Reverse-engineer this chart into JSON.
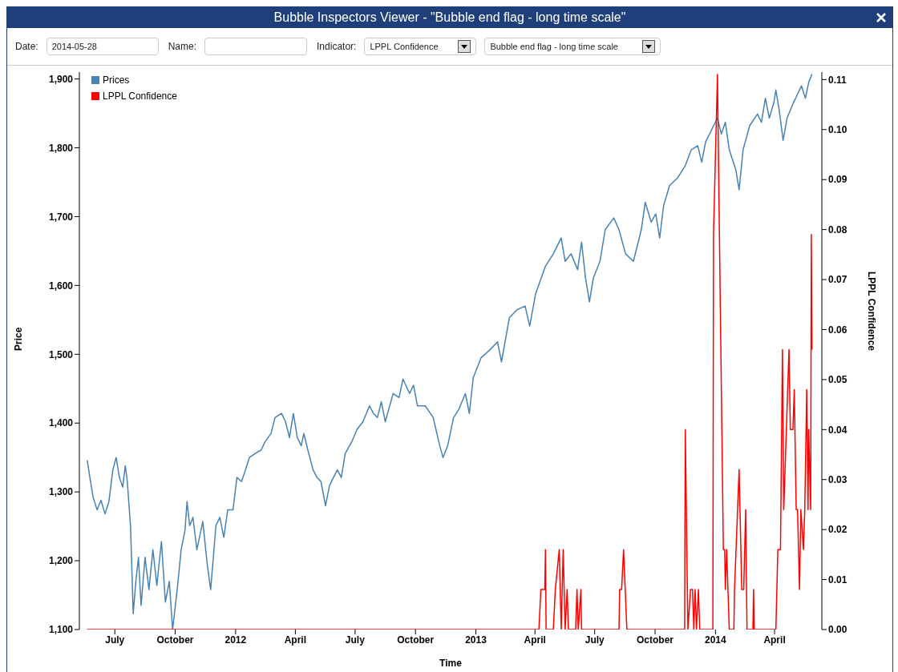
{
  "chart_data": {
    "type": "line",
    "title": "Bubble Inspectors Viewer - \"Bubble end flag - long time scale\"",
    "xlabel": "Time",
    "ylabel": "Price",
    "y2label": "LPPL Confidence",
    "annotations": [
      "Date:",
      "2014-05-28",
      "Name:",
      "Indicator:",
      "LPPL Confidence",
      "Bubble end flag - long time scale"
    ],
    "legend": "top left",
    "grid": false,
    "marker": "none",
    "line_style": "solid",
    "xlim": [
      "2011-05-08",
      "2014-06-12"
    ],
    "xticks": [
      {
        "value": "2011-07-01",
        "label": "July"
      },
      {
        "value": "2011-10-01",
        "label": "October"
      },
      {
        "value": "2012-01-01",
        "label": "2012"
      },
      {
        "value": "2012-04-01",
        "label": "April"
      },
      {
        "value": "2012-07-01",
        "label": "July"
      },
      {
        "value": "2012-10-01",
        "label": "October"
      },
      {
        "value": "2013-01-01",
        "label": "2013"
      },
      {
        "value": "2013-04-01",
        "label": "April"
      },
      {
        "value": "2013-07-01",
        "label": "July"
      },
      {
        "value": "2013-10-01",
        "label": "October"
      },
      {
        "value": "2014-01-01",
        "label": "2014"
      },
      {
        "value": "2014-04-01",
        "label": "April"
      }
    ],
    "ylim": [
      1100,
      1910
    ],
    "yticks": [
      {
        "value": 1100,
        "label": "1,100"
      },
      {
        "value": 1200,
        "label": "1,200"
      },
      {
        "value": 1300,
        "label": "1,300"
      },
      {
        "value": 1400,
        "label": "1,400"
      },
      {
        "value": 1500,
        "label": "1,500"
      },
      {
        "value": 1600,
        "label": "1,600"
      },
      {
        "value": 1700,
        "label": "1,700"
      },
      {
        "value": 1800,
        "label": "1,800"
      },
      {
        "value": 1900,
        "label": "1,900"
      }
    ],
    "y2lim": [
      0,
      0.1115
    ],
    "y2ticks": [
      {
        "value": 0,
        "label": "0.00"
      },
      {
        "value": 0.01,
        "label": "0.01"
      },
      {
        "value": 0.02,
        "label": "0.02"
      },
      {
        "value": 0.03,
        "label": "0.03"
      },
      {
        "value": 0.04,
        "label": "0.04"
      },
      {
        "value": 0.05,
        "label": "0.05"
      },
      {
        "value": 0.06,
        "label": "0.06"
      },
      {
        "value": 0.07,
        "label": "0.07"
      },
      {
        "value": 0.08,
        "label": "0.08"
      },
      {
        "value": 0.09,
        "label": "0.09"
      },
      {
        "value": 0.1,
        "label": "0.10"
      },
      {
        "value": 0.11,
        "label": "0.11"
      }
    ],
    "series": [
      {
        "name": "Prices",
        "color": "#4682b4",
        "x": [
          "2011-05-20",
          "2011-05-24",
          "2011-05-29",
          "2011-06-04",
          "2011-06-10",
          "2011-06-16",
          "2011-06-22",
          "2011-06-28",
          "2011-07-03",
          "2011-07-08",
          "2011-07-13",
          "2011-07-17",
          "2011-07-20",
          "2011-07-25",
          "2011-07-29",
          "2011-08-02",
          "2011-08-06",
          "2011-08-10",
          "2011-08-16",
          "2011-08-22",
          "2011-08-28",
          "2011-09-03",
          "2011-09-10",
          "2011-09-16",
          "2011-09-22",
          "2011-09-27",
          "2011-10-04",
          "2011-10-10",
          "2011-10-16",
          "2011-10-19",
          "2011-10-23",
          "2011-10-28",
          "2011-11-03",
          "2011-11-12",
          "2011-11-19",
          "2011-11-24",
          "2011-12-02",
          "2011-12-08",
          "2011-12-14",
          "2011-12-20",
          "2011-12-28",
          "2012-01-03",
          "2012-01-10",
          "2012-01-16",
          "2012-01-22",
          "2012-01-31",
          "2012-02-09",
          "2012-02-15",
          "2012-02-24",
          "2012-03-01",
          "2012-03-11",
          "2012-03-17",
          "2012-03-23",
          "2012-03-29",
          "2012-04-04",
          "2012-04-10",
          "2012-04-14",
          "2012-04-20",
          "2012-04-28",
          "2012-05-04",
          "2012-05-10",
          "2012-05-17",
          "2012-05-23",
          "2012-05-29",
          "2012-06-04",
          "2012-06-10",
          "2012-06-16",
          "2012-06-26",
          "2012-07-04",
          "2012-07-13",
          "2012-07-23",
          "2012-07-29",
          "2012-08-04",
          "2012-08-10",
          "2012-08-16",
          "2012-08-28",
          "2012-09-06",
          "2012-09-12",
          "2012-09-22",
          "2012-09-28",
          "2012-10-04",
          "2012-10-16",
          "2012-10-28",
          "2012-11-07",
          "2012-11-12",
          "2012-11-19",
          "2012-11-28",
          "2012-12-06",
          "2012-12-16",
          "2012-12-22",
          "2012-12-28",
          "2013-01-09",
          "2013-01-22",
          "2013-02-03",
          "2013-02-09",
          "2013-02-21",
          "2013-03-05",
          "2013-03-17",
          "2013-03-24",
          "2013-04-02",
          "2013-04-17",
          "2013-04-29",
          "2013-05-11",
          "2013-05-17",
          "2013-05-26",
          "2013-06-05",
          "2013-06-11",
          "2013-06-17",
          "2013-06-23",
          "2013-06-29",
          "2013-07-09",
          "2013-07-17",
          "2013-07-30",
          "2013-08-07",
          "2013-08-17",
          "2013-08-29",
          "2013-09-04",
          "2013-09-10",
          "2013-09-16",
          "2013-09-25",
          "2013-10-02",
          "2013-10-08",
          "2013-10-14",
          "2013-10-23",
          "2013-11-04",
          "2013-11-16",
          "2013-11-25",
          "2013-12-05",
          "2013-12-11",
          "2013-12-17",
          "2013-12-23",
          "2013-12-29",
          "2014-01-04",
          "2014-01-10",
          "2014-01-16",
          "2014-01-22",
          "2014-02-01",
          "2014-02-06",
          "2014-02-12",
          "2014-02-22",
          "2014-03-06",
          "2014-03-12",
          "2014-03-18",
          "2014-03-24",
          "2014-03-31",
          "2014-04-03",
          "2014-04-08",
          "2014-04-14",
          "2014-04-20",
          "2014-04-30",
          "2014-05-06",
          "2014-05-12",
          "2014-05-18",
          "2014-05-23",
          "2014-05-28"
        ],
        "values": [
          1346,
          1321,
          1292,
          1274,
          1288,
          1268,
          1286,
          1332,
          1350,
          1321,
          1307,
          1338,
          1315,
          1249,
          1123,
          1170,
          1205,
          1135,
          1205,
          1158,
          1216,
          1164,
          1228,
          1140,
          1170,
          1100,
          1158,
          1216,
          1245,
          1286,
          1251,
          1263,
          1216,
          1257,
          1193,
          1158,
          1251,
          1263,
          1234,
          1274,
          1274,
          1321,
          1315,
          1332,
          1350,
          1356,
          1361,
          1373,
          1385,
          1408,
          1414,
          1402,
          1379,
          1414,
          1379,
          1367,
          1385,
          1361,
          1332,
          1321,
          1315,
          1280,
          1309,
          1321,
          1332,
          1321,
          1356,
          1373,
          1391,
          1402,
          1425,
          1414,
          1408,
          1431,
          1402,
          1443,
          1437,
          1464,
          1443,
          1455,
          1425,
          1425,
          1408,
          1367,
          1350,
          1367,
          1408,
          1420,
          1443,
          1414,
          1466,
          1495,
          1506,
          1518,
          1489,
          1553,
          1565,
          1570,
          1541,
          1588,
          1628,
          1646,
          1669,
          1635,
          1646,
          1623,
          1663,
          1611,
          1576,
          1611,
          1635,
          1681,
          1698,
          1681,
          1646,
          1635,
          1658,
          1681,
          1721,
          1692,
          1704,
          1669,
          1716,
          1745,
          1756,
          1774,
          1797,
          1803,
          1779,
          1809,
          1820,
          1832,
          1843,
          1820,
          1837,
          1797,
          1768,
          1739,
          1797,
          1832,
          1849,
          1837,
          1872,
          1843,
          1866,
          1884,
          1855,
          1811,
          1843,
          1866,
          1878,
          1890,
          1872,
          1895,
          1907
        ]
      },
      {
        "name": "LPPL Confidence",
        "color": "#ff0000",
        "axis": "y2",
        "x": [
          "2011-05-20",
          "2013-04-07",
          "2013-04-10",
          "2013-04-16",
          "2013-04-17",
          "2013-04-18",
          "2013-04-29",
          "2013-05-02",
          "2013-05-08",
          "2013-05-11",
          "2013-05-14",
          "2013-05-17",
          "2013-05-20",
          "2013-05-22",
          "2013-06-02",
          "2013-06-04",
          "2013-06-06",
          "2013-06-10",
          "2013-06-11",
          "2013-08-07",
          "2013-08-08",
          "2013-08-11",
          "2013-08-14",
          "2013-08-19",
          "2013-11-15",
          "2013-11-16",
          "2013-11-20",
          "2013-11-24",
          "2013-11-27",
          "2013-11-29",
          "2013-12-01",
          "2013-12-03",
          "2013-12-06",
          "2013-12-08",
          "2013-12-28",
          "2013-12-29",
          "2014-01-04",
          "2014-01-07",
          "2014-01-13",
          "2014-01-15",
          "2014-01-16",
          "2014-01-18",
          "2014-01-22",
          "2014-01-29",
          "2014-01-30",
          "2014-02-06",
          "2014-02-10",
          "2014-02-13",
          "2014-02-16",
          "2014-02-18",
          "2014-02-27",
          "2014-02-28",
          "2014-03-01",
          "2014-04-03",
          "2014-04-06",
          "2014-04-10",
          "2014-04-13",
          "2014-04-15",
          "2014-04-19",
          "2014-04-23",
          "2014-04-25",
          "2014-04-29",
          "2014-05-01",
          "2014-05-04",
          "2014-05-06",
          "2014-05-09",
          "2014-05-11",
          "2014-05-15",
          "2014-05-17",
          "2014-05-20",
          "2014-05-22",
          "2014-05-23",
          "2014-05-26",
          "2014-05-27",
          "2014-05-28"
        ],
        "values": [
          0,
          0,
          0.008,
          0.008,
          0.016,
          0,
          0,
          0.008,
          0.016,
          0,
          0.016,
          0,
          0.008,
          0,
          0,
          0.008,
          0,
          0.008,
          0,
          0,
          0.008,
          0.008,
          0.016,
          0,
          0,
          0.04,
          0,
          0.008,
          0.008,
          0,
          0.008,
          0,
          0.008,
          0,
          0,
          0.079,
          0.111,
          0.079,
          0.016,
          0.016,
          0.008,
          0.016,
          0,
          0,
          0.008,
          0.032,
          0.008,
          0.008,
          0.024,
          0,
          0,
          0.008,
          0,
          0,
          0.016,
          0.016,
          0.056,
          0.024,
          0.04,
          0.056,
          0.04,
          0.04,
          0.048,
          0.024,
          0.024,
          0.008,
          0.024,
          0.016,
          0.024,
          0.048,
          0.024,
          0.04,
          0.024,
          0.079,
          0.056
        ]
      }
    ]
  }
}
